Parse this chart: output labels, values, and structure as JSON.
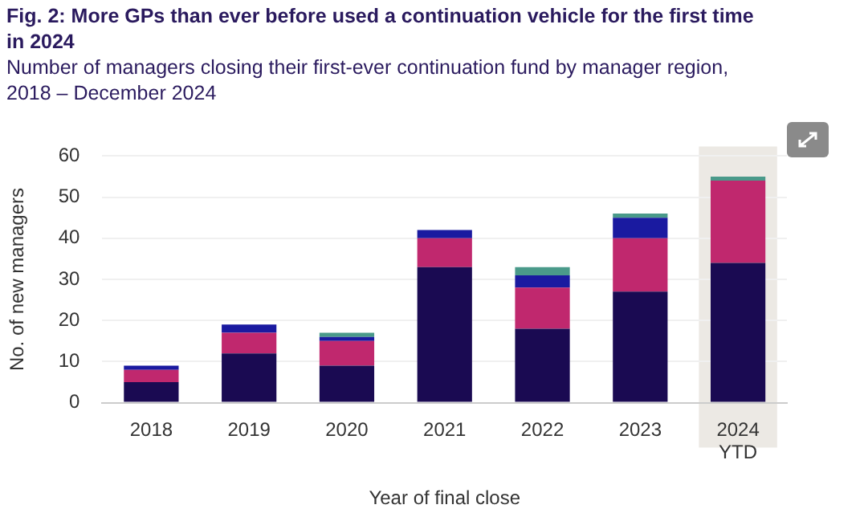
{
  "chart_data": {
    "type": "bar",
    "title": "Fig. 2: More GPs than ever before used a continuation vehicle for the first time in 2024",
    "subtitle": "Number of managers closing their first-ever continuation fund by manager region, 2018 – December 2024",
    "xlabel": "Year of final close",
    "ylabel": "No. of new managers",
    "categories": [
      "2018",
      "2019",
      "2020",
      "2021",
      "2022",
      "2023",
      "2024 YTD"
    ],
    "stacked": true,
    "series": [
      {
        "color": "#1a0a52",
        "values": [
          5,
          12,
          9,
          33,
          18,
          27,
          34
        ]
      },
      {
        "color": "#c0286e",
        "values": [
          3,
          5,
          6,
          7,
          10,
          13,
          20
        ]
      },
      {
        "color": "#1a1aa0",
        "values": [
          1,
          2,
          1,
          2,
          3,
          5,
          0
        ]
      },
      {
        "color": "#4a9a8a",
        "values": [
          0,
          0,
          1,
          0,
          2,
          1,
          1
        ]
      }
    ],
    "ylim": [
      0,
      60
    ],
    "yticks": [
      0,
      10,
      20,
      30,
      40,
      50,
      60
    ],
    "grid": "y",
    "bands": [
      {
        "axis": "x",
        "from": "2024 YTD",
        "to": "2024 YTD",
        "color": "#ece9e4"
      }
    ]
  }
}
